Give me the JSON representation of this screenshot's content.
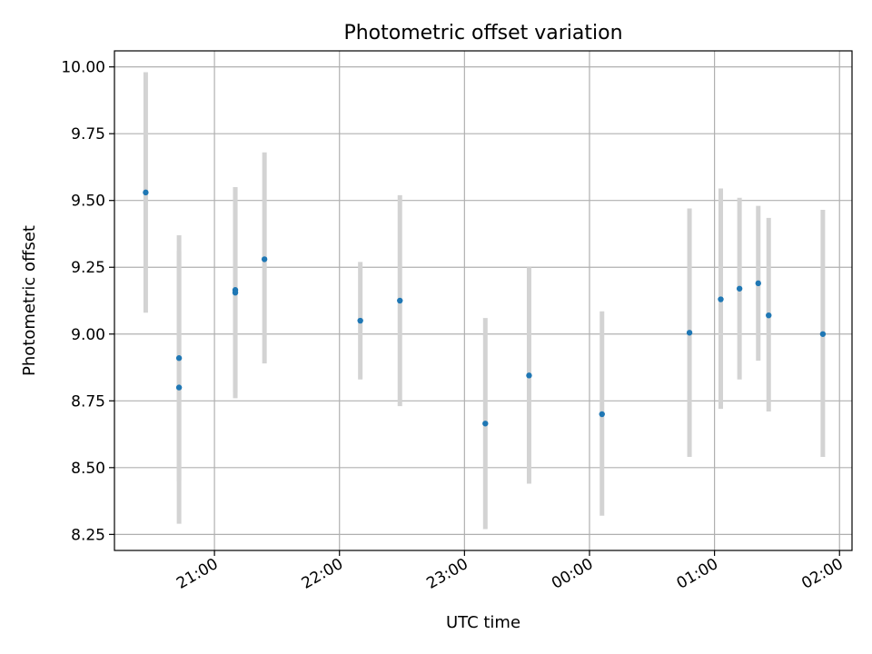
{
  "chart_data": {
    "type": "scatter",
    "title": "Photometric offset variation",
    "xlabel": "UTC time",
    "ylabel": "Photometric offset",
    "x_ticks": [
      "21:00",
      "22:00",
      "23:00",
      "00:00",
      "01:00",
      "02:00"
    ],
    "y_ticks": [
      "8.25",
      "8.50",
      "8.75",
      "9.00",
      "9.25",
      "9.50",
      "9.75",
      "10.00"
    ],
    "xlim": [
      "20:12",
      "02:06"
    ],
    "ylim": [
      8.19,
      10.06
    ],
    "grid": true,
    "legend": "none",
    "colors": {
      "points": "#1f77b4",
      "errorbars": "#d3d3d3"
    },
    "points": [
      {
        "x": "20:27",
        "y": 9.53,
        "ylow": 9.08,
        "yhigh": 9.98
      },
      {
        "x": "20:43",
        "y": 8.91,
        "ylow": 8.45,
        "yhigh": 9.37
      },
      {
        "x": "20:43",
        "y": 8.8,
        "ylow": 8.29,
        "yhigh": 9.31
      },
      {
        "x": "21:10",
        "y": 9.165,
        "ylow": 8.78,
        "yhigh": 9.55
      },
      {
        "x": "21:10",
        "y": 9.155,
        "ylow": 8.76,
        "yhigh": 9.55
      },
      {
        "x": "21:24",
        "y": 9.28,
        "ylow": 8.89,
        "yhigh": 9.68
      },
      {
        "x": "22:10",
        "y": 9.05,
        "ylow": 8.83,
        "yhigh": 9.27
      },
      {
        "x": "22:29",
        "y": 9.125,
        "ylow": 8.73,
        "yhigh": 9.52
      },
      {
        "x": "23:10",
        "y": 8.665,
        "ylow": 8.27,
        "yhigh": 9.06
      },
      {
        "x": "23:31",
        "y": 8.845,
        "ylow": 8.44,
        "yhigh": 9.25
      },
      {
        "x": "00:06",
        "y": 8.7,
        "ylow": 8.32,
        "yhigh": 9.085
      },
      {
        "x": "00:48",
        "y": 9.005,
        "ylow": 8.54,
        "yhigh": 9.47
      },
      {
        "x": "01:03",
        "y": 9.13,
        "ylow": 8.72,
        "yhigh": 9.545
      },
      {
        "x": "01:12",
        "y": 9.17,
        "ylow": 8.83,
        "yhigh": 9.51
      },
      {
        "x": "01:21",
        "y": 9.19,
        "ylow": 8.9,
        "yhigh": 9.48
      },
      {
        "x": "01:26",
        "y": 9.07,
        "ylow": 8.71,
        "yhigh": 9.435
      },
      {
        "x": "01:52",
        "y": 9.0,
        "ylow": 8.54,
        "yhigh": 9.465
      }
    ]
  }
}
